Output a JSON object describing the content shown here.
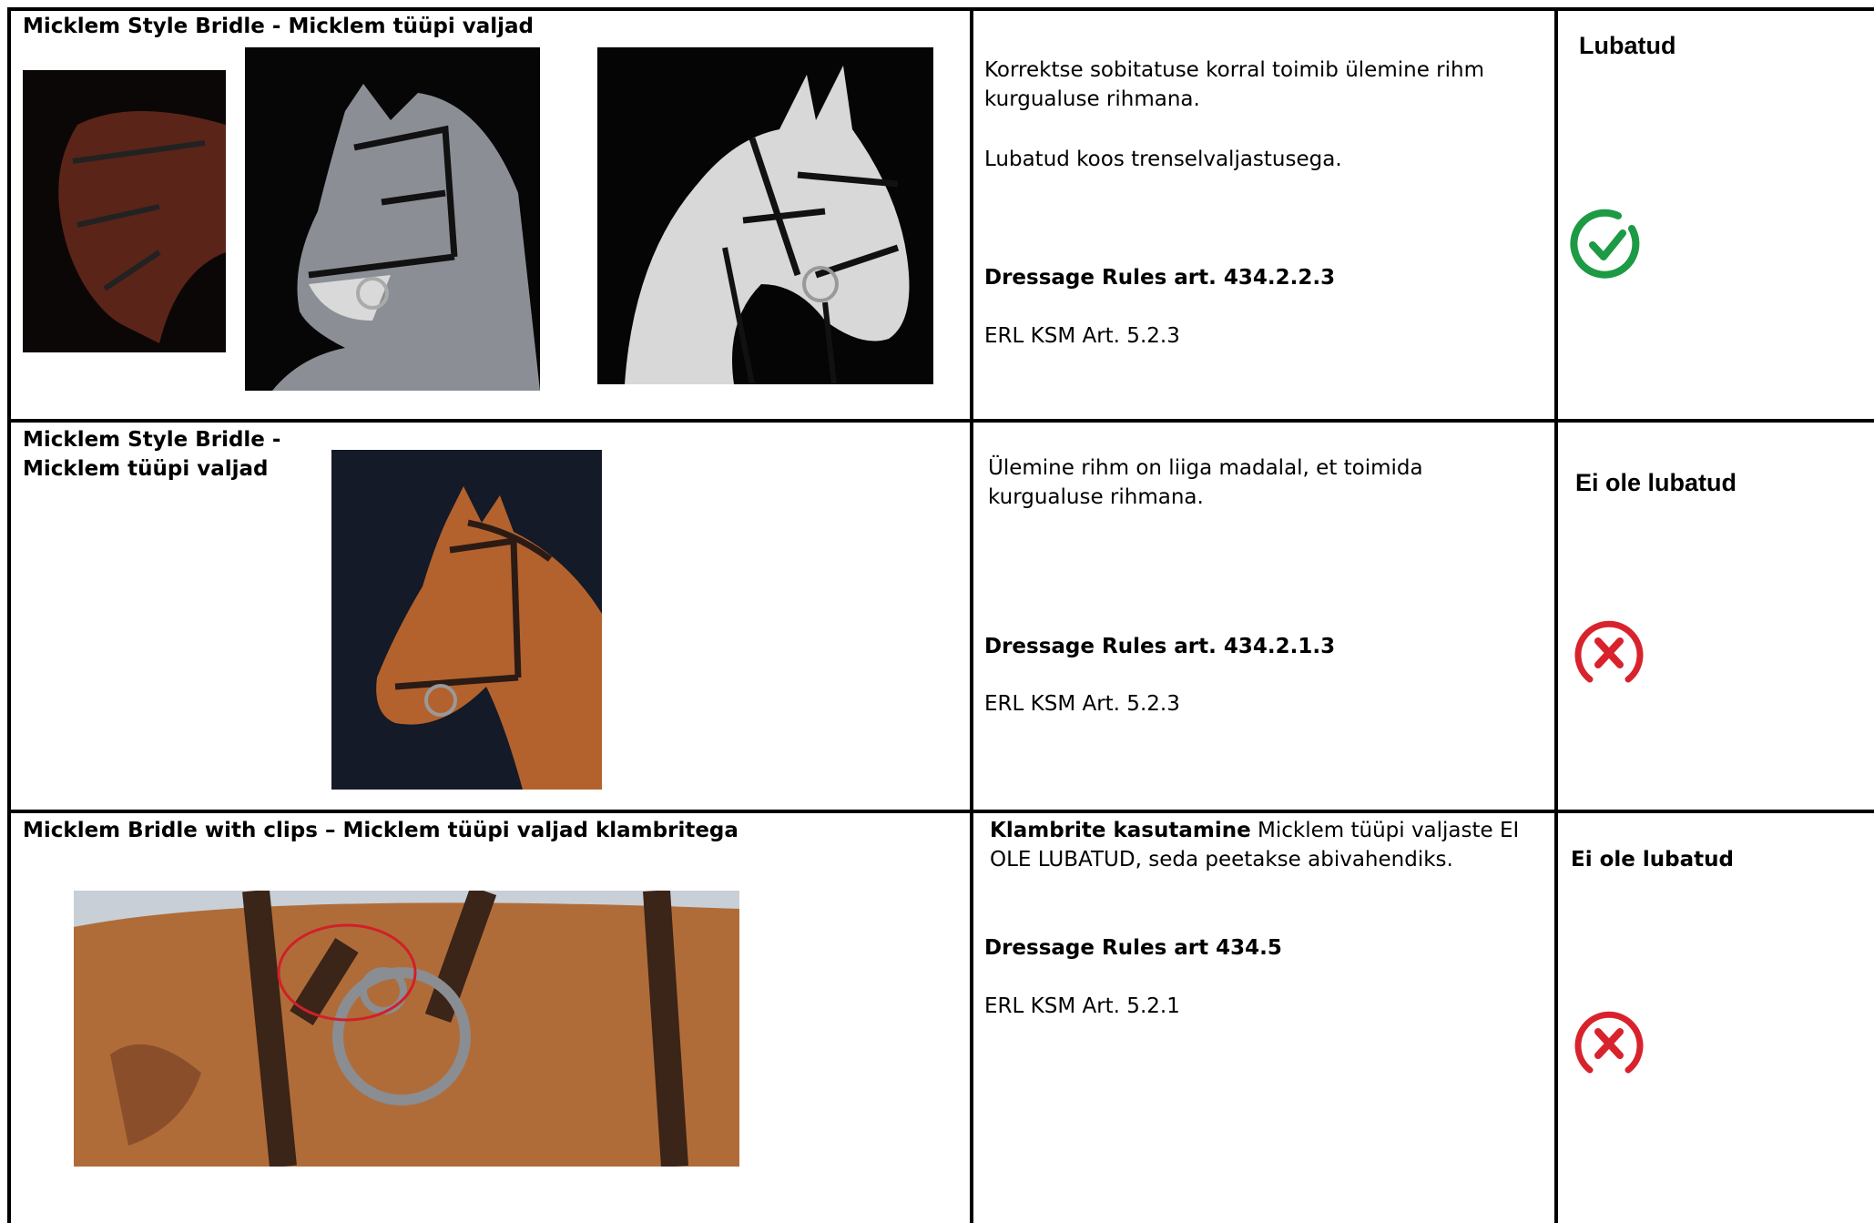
{
  "table": {
    "rows": [
      {
        "title": "Micklem Style Bridle - Micklem tüüpi valjad",
        "description": [
          "Korrektse sobitatuse korral toimib ülemine rihm kurgualuse rihmana.",
          "Lubatud koos trenselvaljastusega."
        ],
        "rule": "Dressage Rules art. 434.2.2.3",
        "reference": "ERL KSM Art. 5.2.3",
        "status": "Lubatud"
      },
      {
        "title": "Micklem Style Bridle - Micklem tüüpi valjad",
        "description": [
          "Ülemine rihm on liiga madalal, et toimida kurgualuse rihmana."
        ],
        "rule": "Dressage Rules art. 434.2.1.3",
        "reference": "ERL KSM Art. 5.2.3",
        "status": "Ei ole lubatud"
      },
      {
        "title": "Micklem Bridle with clips – Micklem tüüpi valjad klambritega",
        "description": [
          "Klambrite kasutamine",
          "Micklem tüüpi valjaste EI OLE LUBATUD, seda peetakse abivahendiks."
        ],
        "rule": "Dressage Rules art 434.5",
        "reference": "ERL KSM Art. 5.2.1",
        "status": "Ei ole lubatud"
      }
    ]
  }
}
